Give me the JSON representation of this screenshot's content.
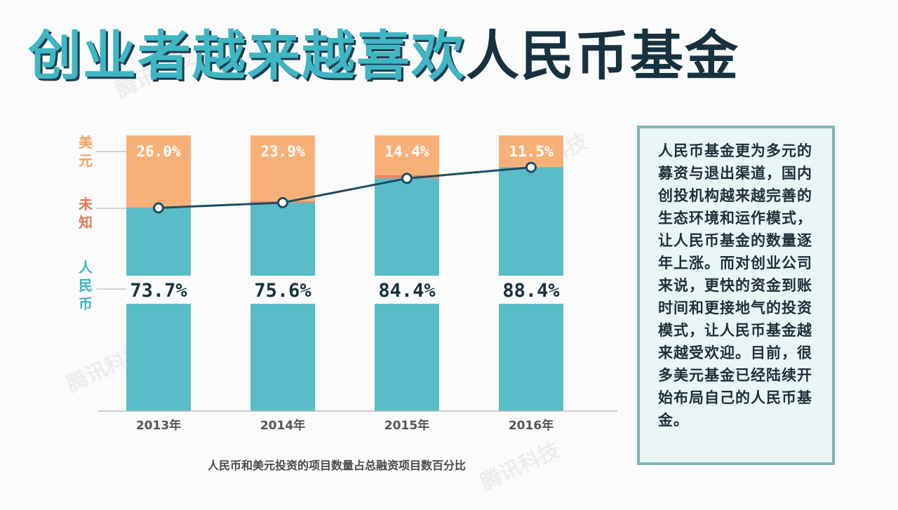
{
  "header": {
    "title_part1": "创业者越来越喜欢",
    "title_part2": "人民币基金"
  },
  "chart_data": {
    "type": "bar",
    "stacked": true,
    "categories": [
      "2013年",
      "2014年",
      "2015年",
      "2016年"
    ],
    "series": [
      {
        "name": "人民币",
        "values": [
          73.7,
          75.6,
          84.4,
          88.4
        ],
        "labels": [
          "73.7%",
          "75.6%",
          "84.4%",
          "88.4%"
        ],
        "color": "#59bdc8"
      },
      {
        "name": "未知",
        "values": [
          0.3,
          0.5,
          1.2,
          0.1
        ],
        "color": "#ea8568"
      },
      {
        "name": "美元",
        "values": [
          26.0,
          23.9,
          14.4,
          11.5
        ],
        "labels": [
          "26.0%",
          "23.9%",
          "14.4%",
          "11.5%"
        ],
        "color": "#f7b178"
      }
    ],
    "line": {
      "values": [
        73.7,
        75.6,
        84.4,
        88.4
      ],
      "color": "#1f4d63"
    },
    "ylim": [
      0,
      100
    ],
    "caption": "人民币和美元投资的项目数量占总融资项目数百分比"
  },
  "side_labels": {
    "usd": "美元",
    "unknown": "未知",
    "rmb": "人民币"
  },
  "note": {
    "text": "人民币基金更为多元的募资与退出渠道，国内创投机构越来越完善的生态环境和运作模式，让人民币基金的数量逐年上涨。而对创业公司来说，更快的资金到账时间和更接地气的投资模式，让人民币基金越来越受欢迎。目前，很多美元基金已经陆续开始布局自己的人民币基金。"
  },
  "watermark": {
    "text": "腾讯科技"
  },
  "colors": {
    "teal": "#59bdc8",
    "orange": "#f7b178",
    "coral": "#ea8568",
    "line": "#1f4d63",
    "title_teal": "#3fb6c3",
    "title_dark": "#17313f"
  }
}
